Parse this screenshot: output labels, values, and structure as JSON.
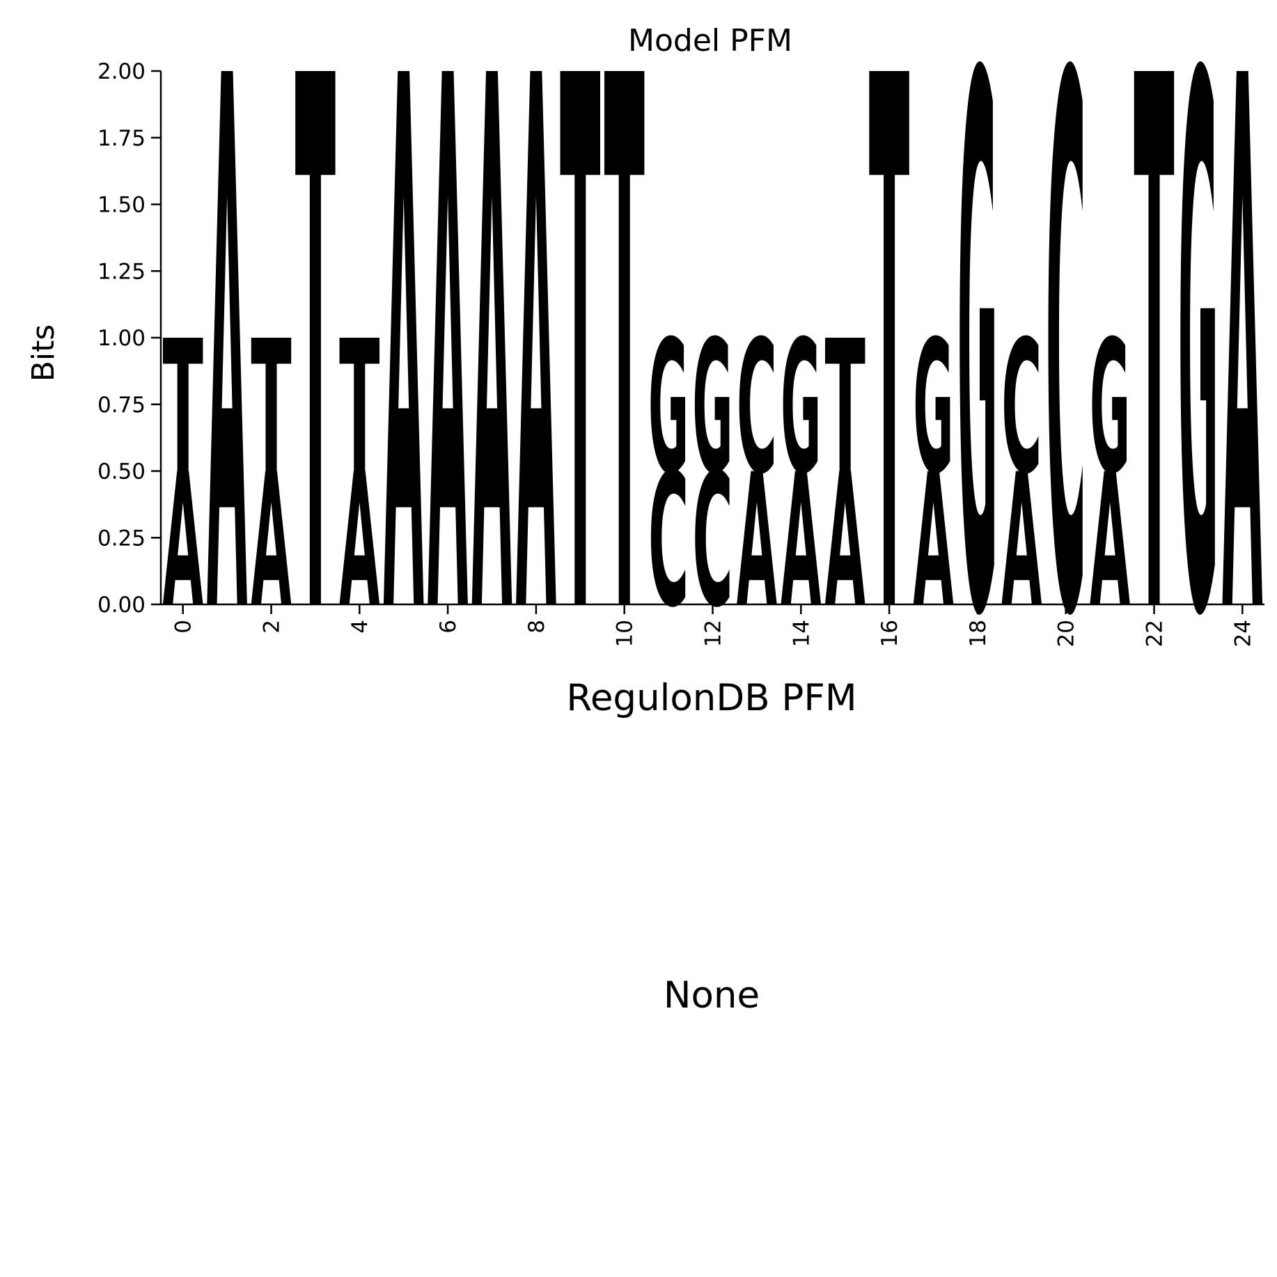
{
  "chart_data": [
    {
      "type": "sequence-logo",
      "title": "Model PFM",
      "ylabel": "Bits",
      "ylim": [
        0,
        2
      ],
      "yticks": [
        "0.00",
        "0.25",
        "0.50",
        "0.75",
        "1.00",
        "1.25",
        "1.50",
        "1.75",
        "2.00"
      ],
      "ytick_values": [
        0,
        0.25,
        0.5,
        0.75,
        1.0,
        1.25,
        1.5,
        1.75,
        2.0
      ],
      "xlim": [
        -0.5,
        24.5
      ],
      "xticks": [
        0,
        2,
        4,
        6,
        8,
        10,
        12,
        14,
        16,
        18,
        20,
        22,
        24
      ],
      "colors": {
        "A": "#ff0000",
        "C": "#0000ff",
        "G": "#ffa500",
        "T": "#008000"
      },
      "positions": [
        [
          [
            "A",
            0.5
          ],
          [
            "T",
            0.5
          ]
        ],
        [
          [
            "A",
            2.0
          ]
        ],
        [
          [
            "A",
            0.5
          ],
          [
            "T",
            0.5
          ]
        ],
        [
          [
            "T",
            2.0
          ]
        ],
        [
          [
            "A",
            0.5
          ],
          [
            "T",
            0.5
          ]
        ],
        [
          [
            "A",
            2.0
          ]
        ],
        [
          [
            "A",
            2.0
          ]
        ],
        [
          [
            "A",
            2.0
          ]
        ],
        [
          [
            "A",
            2.0
          ]
        ],
        [
          [
            "T",
            2.0
          ]
        ],
        [
          [
            "T",
            2.0
          ]
        ],
        [
          [
            "C",
            0.5
          ],
          [
            "G",
            0.5
          ]
        ],
        [
          [
            "C",
            0.5
          ],
          [
            "G",
            0.5
          ]
        ],
        [
          [
            "A",
            0.5
          ],
          [
            "C",
            0.5
          ]
        ],
        [
          [
            "A",
            0.5
          ],
          [
            "G",
            0.5
          ]
        ],
        [
          [
            "A",
            0.5
          ],
          [
            "T",
            0.5
          ]
        ],
        [
          [
            "T",
            2.0
          ]
        ],
        [
          [
            "A",
            0.5
          ],
          [
            "G",
            0.5
          ]
        ],
        [
          [
            "G",
            2.0
          ]
        ],
        [
          [
            "A",
            0.5
          ],
          [
            "C",
            0.5
          ]
        ],
        [
          [
            "C",
            2.0
          ]
        ],
        [
          [
            "A",
            0.5
          ],
          [
            "G",
            0.5
          ]
        ],
        [
          [
            "T",
            2.0
          ]
        ],
        [
          [
            "G",
            2.0
          ]
        ],
        [
          [
            "A",
            2.0
          ]
        ]
      ]
    },
    {
      "type": "sequence-logo",
      "title": "RegulonDB PFM",
      "message": "None"
    }
  ]
}
